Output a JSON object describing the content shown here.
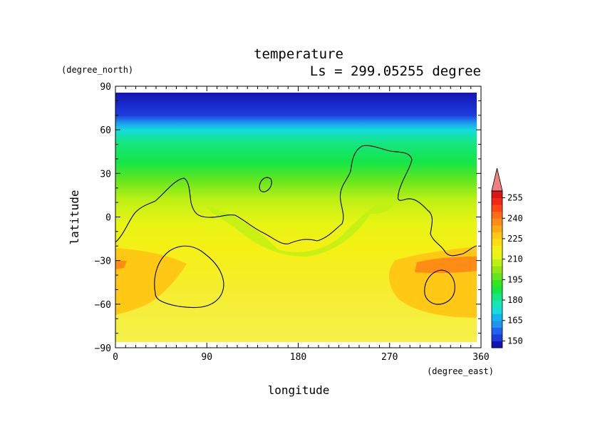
{
  "chart_data": {
    "type": "heatmap",
    "title": "temperature",
    "subtitle": "Ls = 299.05255 degree",
    "xlabel": "longitude",
    "ylabel": "latitude",
    "x_units": "(degree_east)",
    "y_units": "(degree_north)",
    "xlim": [
      0,
      360
    ],
    "ylim": [
      -90,
      90
    ],
    "x_ticks": [
      "0",
      "90",
      "180",
      "270",
      "360"
    ],
    "y_ticks": [
      "90",
      "60",
      "30",
      "0",
      "−30",
      "−60",
      "−90"
    ],
    "colorbar": {
      "labels": [
        "150",
        "165",
        "180",
        "195",
        "210",
        "225",
        "240",
        "255"
      ],
      "levels": [
        145,
        150,
        155,
        160,
        165,
        170,
        175,
        180,
        185,
        190,
        195,
        200,
        205,
        210,
        215,
        220,
        225,
        230,
        235,
        240,
        245,
        250,
        255,
        260
      ],
      "colors": [
        "#1414b4",
        "#1e3cdc",
        "#1e64f0",
        "#1e96f0",
        "#14b4f0",
        "#14dcdc",
        "#14e6b4",
        "#14e682",
        "#14e646",
        "#32e61e",
        "#64e61e",
        "#96e614",
        "#bef014",
        "#e6f514",
        "#f5f014",
        "#ffdc14",
        "#ffc814",
        "#ffaa14",
        "#ff8c14",
        "#ff6e14",
        "#ff4614",
        "#f02814",
        "#dc1414",
        "#f08080"
      ],
      "extend": "max"
    }
  }
}
